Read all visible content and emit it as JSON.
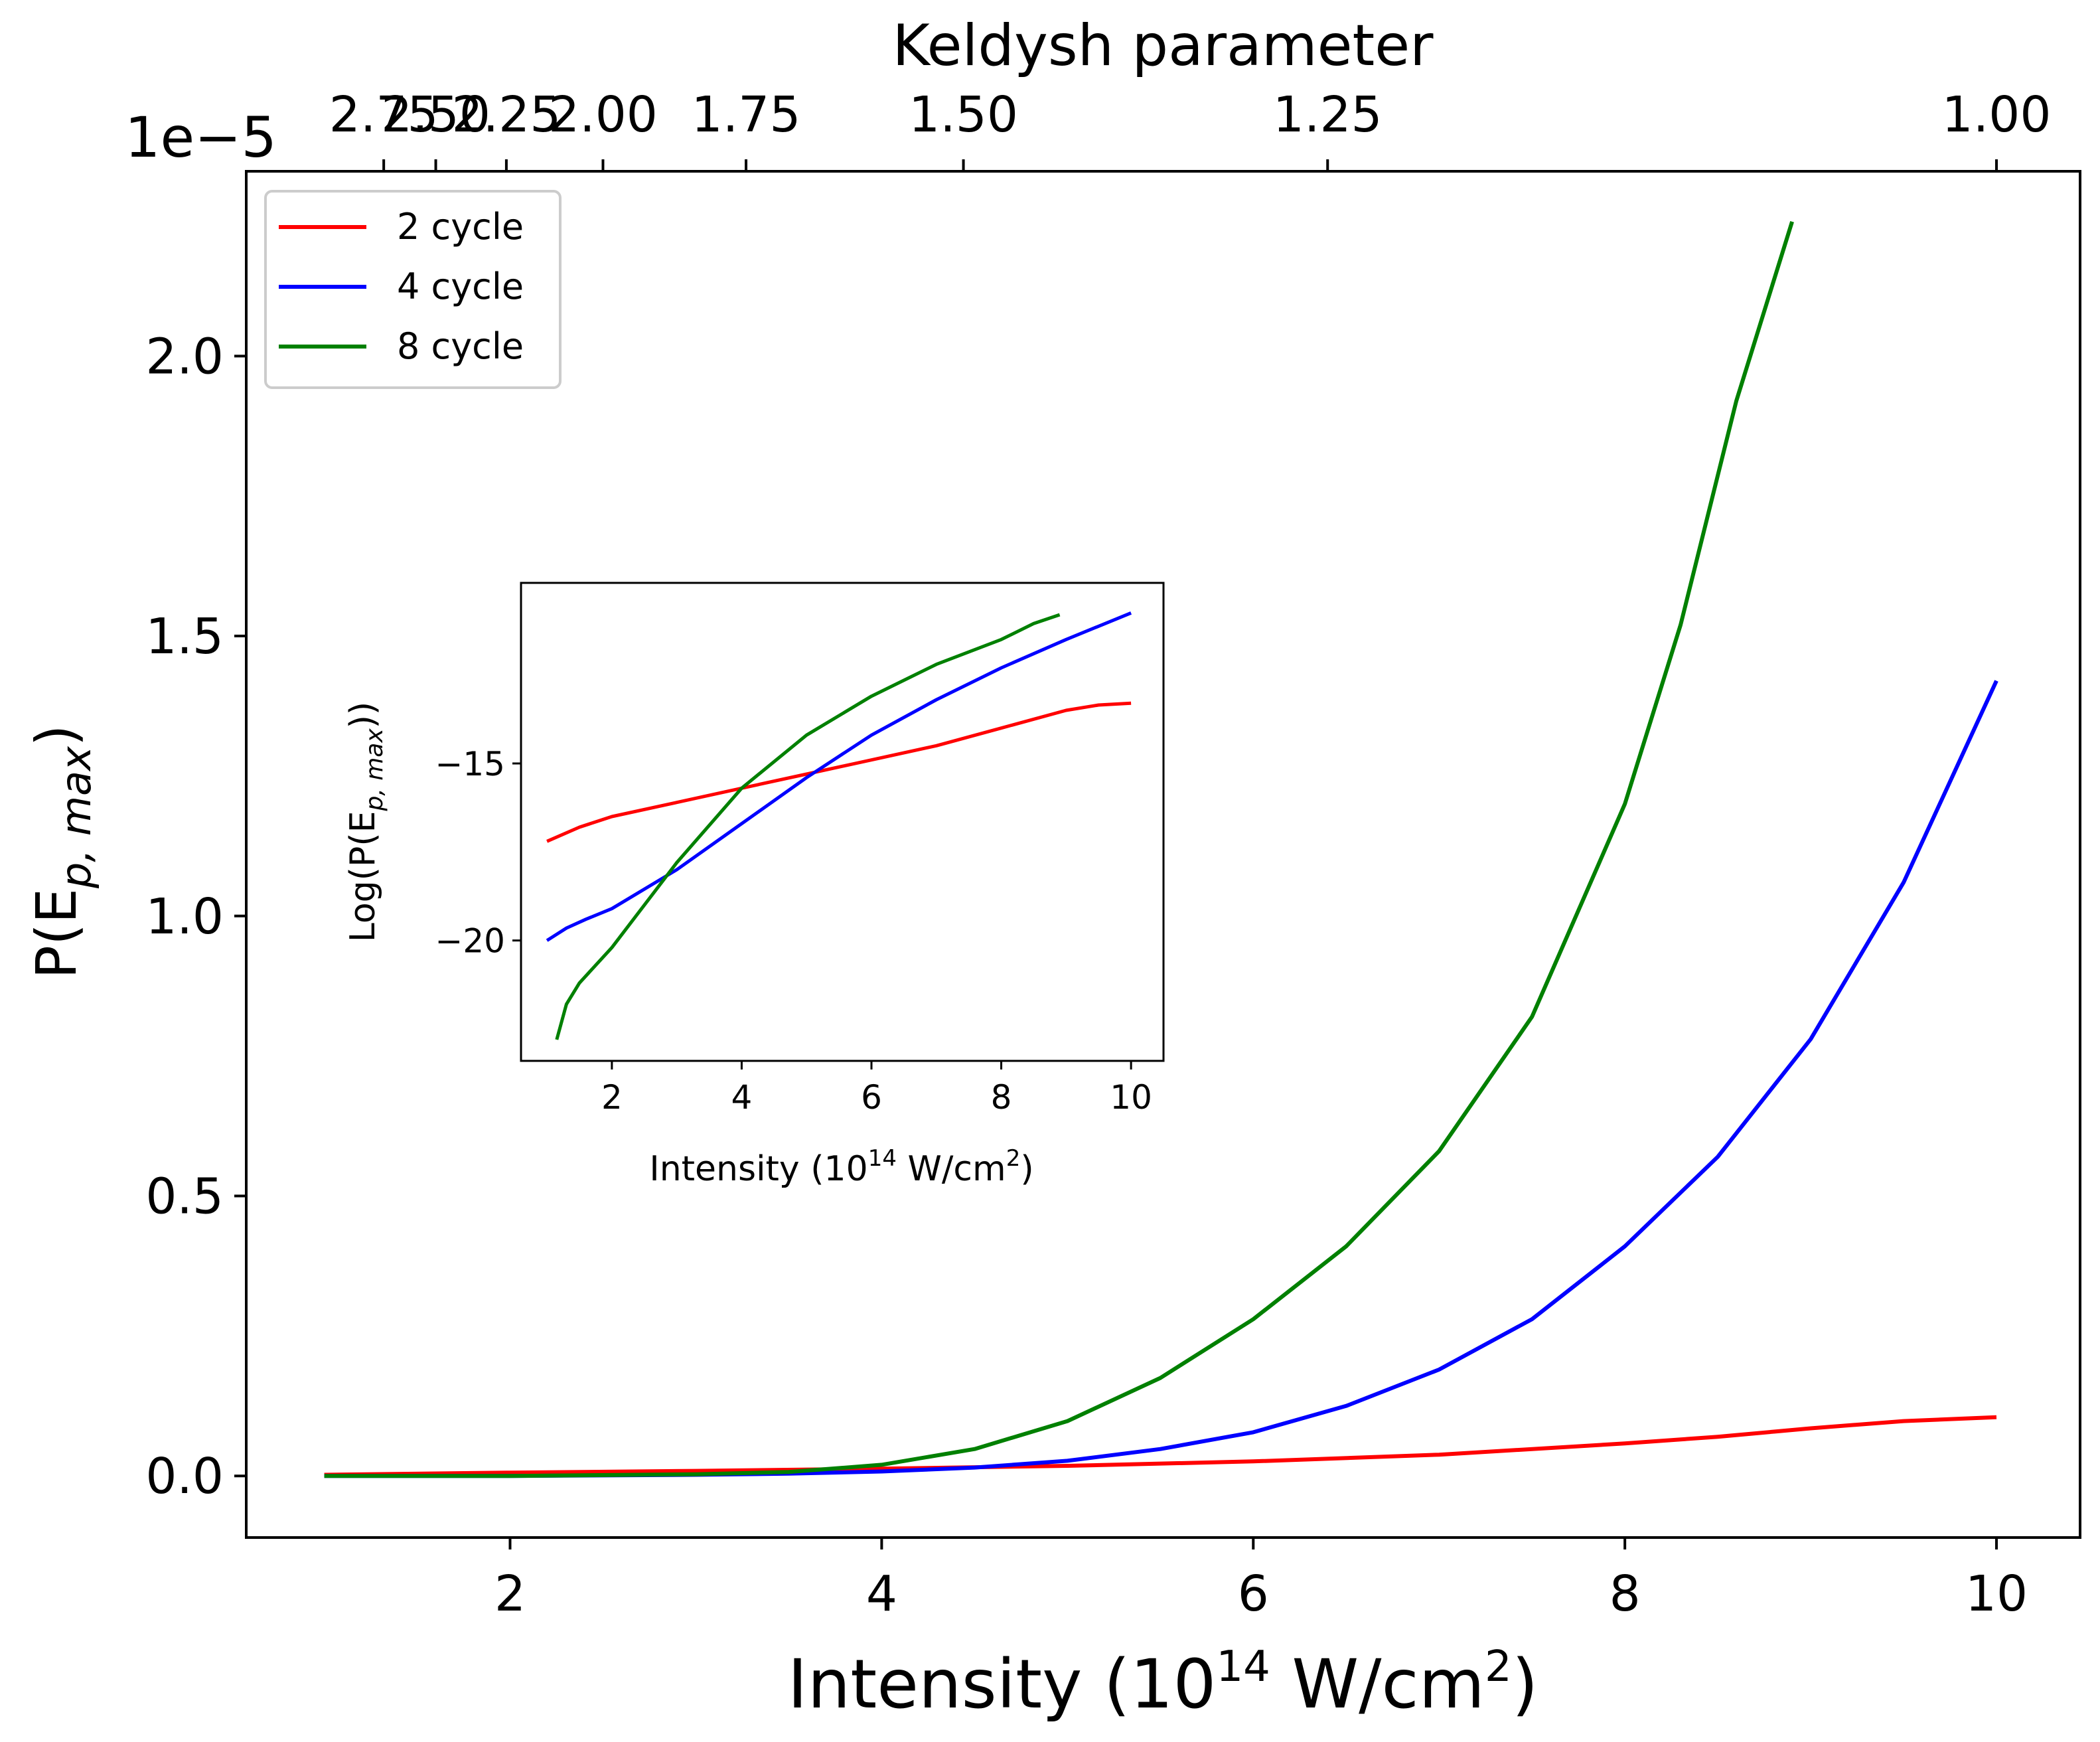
{
  "chart_data": {
    "type": "line",
    "main": {
      "xlabel": "Intensity (10",
      "xlabel_sup": "14",
      "xlabel_mid": " W/cm",
      "xlabel_sup2": "2",
      "xlabel_end": ")",
      "ylabel": "P(E",
      "ylabel_sub": "p, max",
      "ylabel_end": ")",
      "offset_text": "1e−5",
      "xlim": [
        0.58,
        10.45
      ],
      "ylim": [
        -0.11,
        2.33
      ],
      "xticks": [
        2,
        4,
        6,
        8,
        10
      ],
      "xtick_labels": [
        "2",
        "4",
        "6",
        "8",
        "10"
      ],
      "yticks": [
        0.0,
        0.5,
        1.0,
        1.5,
        2.0
      ],
      "ytick_labels": [
        "0.0",
        "0.5",
        "1.0",
        "1.5",
        "2.0"
      ],
      "top_axis": {
        "label": "Keldysh parameter",
        "tick_labels": [
          "2.75",
          "2.50",
          "2.25",
          "2.00",
          "1.75",
          "1.50",
          "1.25",
          "1.00"
        ],
        "tick_positions_intensity": [
          1.32,
          1.6,
          1.98,
          2.5,
          3.27,
          4.44,
          6.4,
          10.0
        ]
      },
      "legend": {
        "placement": "upper-left",
        "entries": [
          "2 cycle",
          "4 cycle",
          "8 cycle"
        ]
      },
      "series": [
        {
          "name": "2 cycle",
          "color": "#ff0000",
          "x": [
            1.0,
            2.0,
            3.0,
            4.0,
            5.0,
            6.0,
            7.0,
            8.0,
            8.5,
            9.0,
            9.5,
            10.0
          ],
          "y": [
            0.002,
            0.006,
            0.009,
            0.013,
            0.018,
            0.026,
            0.038,
            0.058,
            0.07,
            0.085,
            0.098,
            0.105
          ]
        },
        {
          "name": "4 cycle",
          "color": "#0000ff",
          "x": [
            1.0,
            2.0,
            3.0,
            3.5,
            4.0,
            4.5,
            5.0,
            5.5,
            6.0,
            6.5,
            7.0,
            7.5,
            8.0,
            8.5,
            9.0,
            9.5,
            10.0
          ],
          "y": [
            0.0,
            0.0,
            0.002,
            0.004,
            0.008,
            0.015,
            0.027,
            0.048,
            0.078,
            0.125,
            0.19,
            0.28,
            0.41,
            0.57,
            0.78,
            1.06,
            1.42
          ]
        },
        {
          "name": "8 cycle",
          "color": "#008000",
          "x": [
            1.0,
            2.0,
            3.0,
            3.5,
            4.0,
            4.5,
            5.0,
            5.5,
            6.0,
            6.5,
            7.0,
            7.5,
            8.0,
            8.3,
            8.6,
            8.9
          ],
          "y": [
            0.0,
            0.0,
            0.003,
            0.007,
            0.02,
            0.048,
            0.098,
            0.175,
            0.28,
            0.41,
            0.58,
            0.82,
            1.2,
            1.52,
            1.92,
            2.24
          ]
        }
      ]
    },
    "inset": {
      "xlabel": "Intensity (10",
      "xlabel_sup": "14",
      "xlabel_mid": " W/cm",
      "xlabel_sup2": "2",
      "xlabel_end": ")",
      "ylabel": "Log(P(E",
      "ylabel_sub": "p, max",
      "ylabel_end": "))",
      "xlim": [
        0.6,
        10.5
      ],
      "ylim": [
        -23.4,
        -9.9
      ],
      "xticks": [
        2,
        4,
        6,
        8,
        10
      ],
      "xtick_labels": [
        "2",
        "4",
        "6",
        "8",
        "10"
      ],
      "yticks": [
        -15,
        -20
      ],
      "ytick_labels": [
        "−15",
        "−20"
      ],
      "series": [
        {
          "name": "2 cycle",
          "color": "#ff0000",
          "x": [
            1.0,
            1.5,
            2.0,
            3.0,
            4.0,
            5.0,
            6.0,
            7.0,
            8.0,
            9.0,
            9.5,
            10.0
          ],
          "y": [
            -17.2,
            -16.8,
            -16.5,
            -16.1,
            -15.7,
            -15.3,
            -14.9,
            -14.5,
            -14.0,
            -13.5,
            -13.35,
            -13.3
          ]
        },
        {
          "name": "4 cycle",
          "color": "#0000ff",
          "x": [
            1.0,
            1.3,
            1.6,
            2.0,
            3.0,
            4.0,
            5.0,
            6.0,
            7.0,
            8.0,
            9.0,
            10.0
          ],
          "y": [
            -20.0,
            -19.65,
            -19.4,
            -19.1,
            -18.0,
            -16.7,
            -15.4,
            -14.2,
            -13.2,
            -12.3,
            -11.5,
            -10.75
          ]
        },
        {
          "name": "8 cycle",
          "color": "#008000",
          "x": [
            1.15,
            1.3,
            1.5,
            2.0,
            3.0,
            4.0,
            5.0,
            6.0,
            7.0,
            8.0,
            8.5,
            8.9
          ],
          "y": [
            -22.8,
            -21.8,
            -21.2,
            -20.2,
            -17.8,
            -15.7,
            -14.2,
            -13.1,
            -12.2,
            -11.5,
            -11.05,
            -10.8
          ]
        }
      ]
    }
  }
}
